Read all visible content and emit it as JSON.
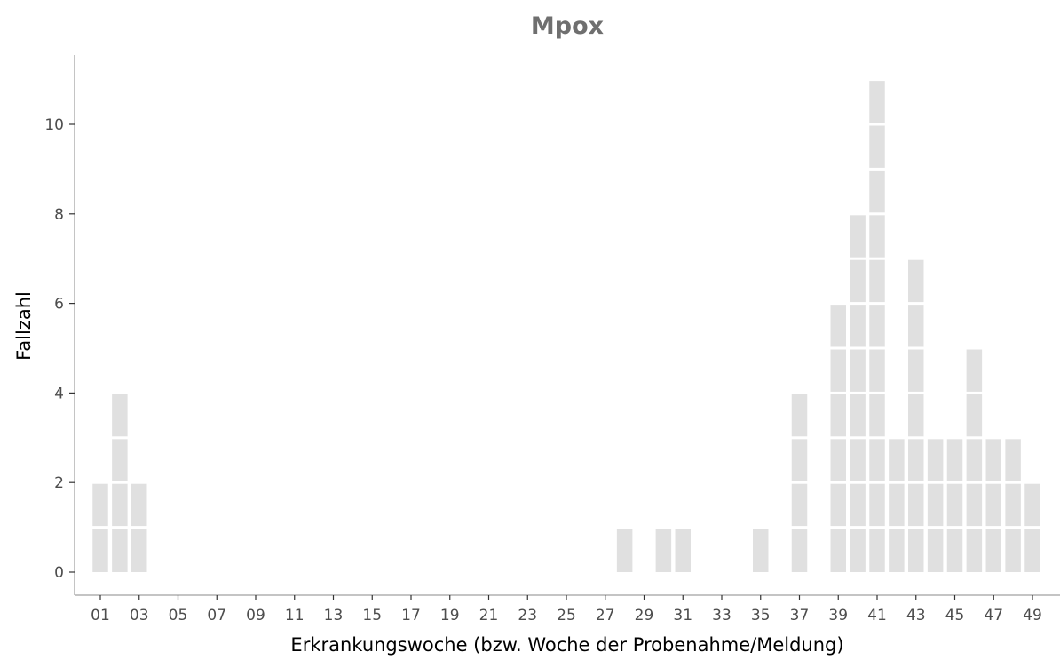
{
  "chart_data": {
    "type": "bar",
    "title": "Mpox",
    "xlabel": "Erkrankungswoche (bzw. Woche der Probenahme/Meldung)",
    "ylabel": "Fallzahl",
    "x_range": [
      1,
      49
    ],
    "ylim": [
      0,
      11
    ],
    "y_ticks": [
      0,
      2,
      4,
      6,
      8,
      10
    ],
    "x_tick_labels": [
      "01",
      "03",
      "05",
      "07",
      "09",
      "11",
      "13",
      "15",
      "17",
      "19",
      "21",
      "23",
      "25",
      "27",
      "29",
      "31",
      "33",
      "35",
      "37",
      "39",
      "41",
      "43",
      "45",
      "47",
      "49"
    ],
    "grid": false,
    "legend": "none",
    "bar_style": "stacked unit cells (one cell per case)",
    "colors": {
      "bar": "#e0e0e0",
      "cell_separator": "#ffffff",
      "title": "#6f6f6f"
    },
    "weeks": [
      1,
      2,
      3,
      28,
      30,
      31,
      35,
      37,
      39,
      40,
      41,
      42,
      43,
      44,
      45,
      46,
      47,
      48,
      49
    ],
    "values": [
      2,
      4,
      2,
      1,
      1,
      1,
      1,
      4,
      6,
      8,
      11,
      3,
      7,
      3,
      3,
      5,
      3,
      3,
      2
    ]
  }
}
